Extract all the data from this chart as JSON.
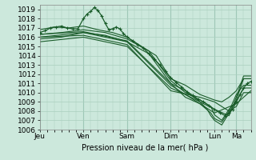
{
  "title": "",
  "xlabel": "Pression niveau de la mer( hPa )",
  "ylabel": "",
  "ylim": [
    1006,
    1019.5
  ],
  "xlim": [
    0,
    116
  ],
  "yticks": [
    1006,
    1007,
    1008,
    1009,
    1010,
    1011,
    1012,
    1013,
    1014,
    1015,
    1016,
    1017,
    1018,
    1019
  ],
  "xtick_positions": [
    0,
    24,
    48,
    72,
    96,
    108
  ],
  "xtick_labels": [
    "Jeu",
    "Ven",
    "Sam",
    "Dim",
    "Lun",
    "Ma"
  ],
  "bg_color": "#cce8dc",
  "grid_color": "#aacfbe",
  "line_color": "#1a5c2a",
  "series": [
    [
      0,
      1016.5,
      3,
      1016.7,
      6,
      1017.0,
      9,
      1017.1,
      12,
      1017.2,
      15,
      1017.0,
      18,
      1016.9,
      21,
      1016.9,
      24,
      1018.0,
      26,
      1018.5,
      28,
      1018.8,
      30,
      1019.2,
      32,
      1018.9,
      34,
      1018.3,
      36,
      1017.5,
      38,
      1016.8,
      40,
      1016.9,
      42,
      1017.1,
      44,
      1016.9,
      46,
      1016.4,
      48,
      1016.0,
      51,
      1015.6,
      54,
      1015.2,
      57,
      1014.8,
      60,
      1014.2,
      63,
      1013.6,
      66,
      1013.0,
      69,
      1012.3,
      72,
      1011.6,
      75,
      1011.1,
      78,
      1010.6,
      81,
      1010.1,
      84,
      1009.7,
      87,
      1009.3,
      90,
      1009.0,
      93,
      1008.6,
      96,
      1008.2,
      99,
      1007.8,
      102,
      1007.5,
      104,
      1007.8,
      106,
      1008.2,
      108,
      1009.0,
      110,
      1009.8,
      112,
      1010.5,
      114,
      1011.0,
      116,
      1011.2
    ],
    [
      0,
      1016.3,
      12,
      1016.5,
      24,
      1016.8,
      36,
      1016.5,
      48,
      1015.8,
      60,
      1014.5,
      72,
      1011.3,
      80,
      1010.0,
      88,
      1009.2,
      94,
      1008.5,
      96,
      1007.6,
      100,
      1007.0,
      104,
      1008.2,
      108,
      1009.0,
      112,
      1010.5,
      116,
      1010.5
    ],
    [
      0,
      1015.8,
      12,
      1016.0,
      24,
      1016.5,
      36,
      1016.2,
      48,
      1015.5,
      60,
      1014.2,
      72,
      1011.0,
      80,
      1009.5,
      88,
      1008.8,
      94,
      1007.8,
      96,
      1007.2,
      100,
      1006.8,
      104,
      1008.0,
      108,
      1008.5,
      112,
      1010.0,
      116,
      1010.0
    ],
    [
      0,
      1016.0,
      24,
      1016.5,
      48,
      1015.5,
      72,
      1010.8,
      96,
      1007.8,
      108,
      1008.8,
      116,
      1010.2
    ],
    [
      0,
      1016.3,
      24,
      1016.6,
      48,
      1015.6,
      72,
      1011.0,
      80,
      1010.2,
      88,
      1009.0,
      92,
      1008.2,
      94,
      1007.5,
      96,
      1007.0,
      100,
      1006.5,
      104,
      1007.8,
      108,
      1009.2,
      112,
      1011.5,
      116,
      1011.5
    ],
    [
      0,
      1015.5,
      24,
      1016.0,
      48,
      1015.0,
      72,
      1010.5,
      80,
      1009.8,
      96,
      1008.2,
      104,
      1007.5,
      108,
      1009.5,
      112,
      1011.8,
      116,
      1011.8
    ],
    [
      0,
      1016.8,
      8,
      1017.1,
      16,
      1017.0,
      24,
      1017.2,
      32,
      1016.8,
      40,
      1016.5,
      48,
      1016.0,
      56,
      1015.0,
      64,
      1014.0,
      72,
      1011.5,
      80,
      1010.8,
      88,
      1009.8,
      96,
      1009.2,
      100,
      1009.0,
      104,
      1009.5,
      108,
      1010.2,
      112,
      1011.5,
      116,
      1011.5
    ],
    [
      0,
      1016.0,
      24,
      1016.2,
      48,
      1015.2,
      72,
      1010.2,
      88,
      1009.5,
      96,
      1009.0,
      104,
      1008.0,
      108,
      1009.8,
      112,
      1010.8,
      116,
      1010.8
    ]
  ],
  "vline_positions": [
    0,
    24,
    48,
    72,
    96,
    108
  ]
}
